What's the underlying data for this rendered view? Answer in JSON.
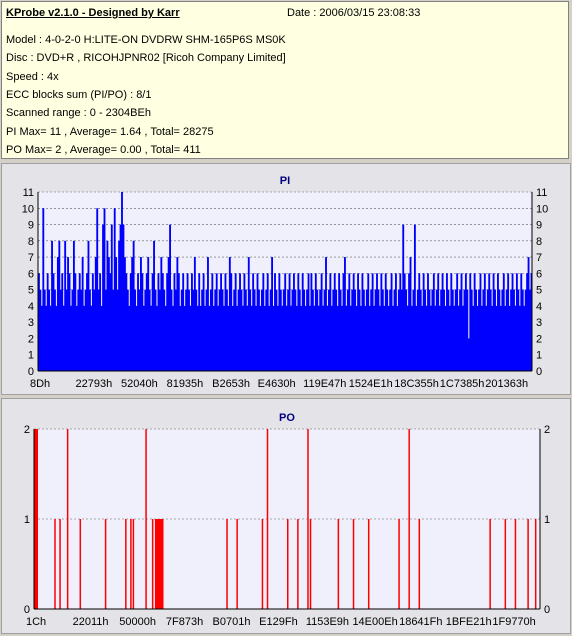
{
  "info": {
    "title": "KProbe v2.1.0 - Designed by Karr",
    "date": "Date : 2006/03/15 23:08:33",
    "lines": [
      "Model : 4-0-2-0 H:LITE-ON DVDRW SHM-165P6S MS0K",
      "Disc : DVD+R , RICOHJPNR02 [Ricoh Company Limited]",
      "Speed : 4x",
      "ECC blocks sum (PI/PO) : 8/1",
      "Scanned range : 0 - 2304BEh",
      "PI Max= 11 , Average= 1.64 , Total= 28275",
      "PO Max= 2 , Average= 0.00 , Total= 411"
    ]
  },
  "chart_data": [
    {
      "type": "bar",
      "title": "PI",
      "ylim": [
        0,
        11
      ],
      "yticks": [
        0,
        1,
        2,
        3,
        4,
        5,
        6,
        7,
        8,
        9,
        10,
        11
      ],
      "xtick_labels": [
        "8Dh",
        "22793h",
        "52040h",
        "81935h",
        "B2653h",
        "E4630h",
        "119E47h",
        "1524E1h",
        "18C355h",
        "1C7385h",
        "201363h"
      ],
      "color": "#0000ff",
      "grid": true,
      "series": [
        {
          "values": [
            6,
            5,
            4,
            10,
            5,
            4,
            6,
            5,
            4,
            8,
            6,
            5,
            4,
            7,
            8,
            5,
            6,
            4,
            8,
            5,
            7,
            6,
            4,
            5,
            8,
            6,
            4,
            5,
            6,
            5,
            7,
            4,
            5,
            6,
            8,
            5,
            4,
            6,
            5,
            7,
            10,
            5,
            6,
            4,
            9,
            10,
            5,
            8,
            7,
            6,
            9,
            5,
            10,
            7,
            5,
            8,
            9,
            11,
            9,
            7,
            6,
            5,
            4,
            6,
            7,
            8,
            5,
            4,
            6,
            5,
            7,
            6,
            4,
            5,
            6,
            7,
            5,
            4,
            6,
            8,
            5,
            4,
            6,
            5,
            7,
            6,
            5,
            4,
            6,
            7,
            9,
            5,
            4,
            6,
            5,
            7,
            6,
            4,
            5,
            6,
            4,
            5,
            6,
            5,
            4,
            6,
            5,
            7,
            5,
            4,
            6,
            4,
            5,
            6,
            4,
            5,
            7,
            4,
            5,
            6,
            4,
            5,
            6,
            4,
            5,
            6,
            5,
            4,
            6,
            5,
            4,
            7,
            6,
            4,
            5,
            6,
            4,
            5,
            6,
            5,
            4,
            6,
            5,
            4,
            7,
            5,
            4,
            6,
            5,
            4,
            6,
            5,
            4,
            5,
            6,
            4,
            5,
            6,
            4,
            5,
            7,
            4,
            6,
            5,
            4,
            6,
            5,
            4,
            5,
            6,
            4,
            5,
            6,
            4,
            5,
            6,
            5,
            4,
            6,
            5,
            4,
            6,
            5,
            4,
            5,
            6,
            4,
            6,
            5,
            4,
            6,
            5,
            4,
            5,
            6,
            4,
            5,
            7,
            4,
            5,
            6,
            4,
            5,
            6,
            5,
            4,
            6,
            5,
            4,
            6,
            7,
            4,
            5,
            6,
            4,
            5,
            6,
            5,
            4,
            6,
            5,
            4,
            6,
            5,
            4,
            5,
            6,
            4,
            5,
            6,
            4,
            5,
            6,
            5,
            4,
            6,
            5,
            4,
            6,
            5,
            4,
            5,
            6,
            4,
            5,
            6,
            4,
            5,
            6,
            5,
            9,
            6,
            5,
            4,
            6,
            7,
            4,
            5,
            9,
            4,
            5,
            6,
            5,
            4,
            6,
            5,
            4,
            6,
            5,
            4,
            5,
            6,
            4,
            5,
            6,
            4,
            5,
            6,
            5,
            4,
            6,
            5,
            4,
            6,
            5,
            4,
            5,
            6,
            4,
            5,
            6,
            4,
            5,
            6,
            5,
            2,
            6,
            5,
            4,
            6,
            5,
            4,
            5,
            6,
            4,
            5,
            6,
            4,
            5,
            6,
            5,
            4,
            6,
            5,
            4,
            6,
            5,
            4,
            5,
            6,
            4,
            5,
            6,
            4,
            5,
            6,
            5,
            4,
            6,
            5,
            4,
            6,
            5,
            4,
            5,
            6,
            7,
            5,
            6
          ]
        }
      ]
    },
    {
      "type": "bar",
      "title": "PO",
      "ylim": [
        0,
        2
      ],
      "yticks": [
        0,
        1,
        2
      ],
      "xtick_labels": [
        "1Ch",
        "22011h",
        "50000h",
        "7F873h",
        "B0701h",
        "E129Fh",
        "1153E9h",
        "14E00Eh",
        "18641Fh",
        "1BFE21h",
        "1F9770h"
      ],
      "color": "#ff0000",
      "grid": true,
      "series": [
        {
          "x": [
            0.001,
            0.003,
            0.005,
            0.04,
            0.05,
            0.065,
            0.09,
            0.14,
            0.18,
            0.19,
            0.195,
            0.22,
            0.233,
            0.239,
            0.24,
            0.242,
            0.244,
            0.245,
            0.247,
            0.248,
            0.25,
            0.252,
            0.253,
            0.38,
            0.4,
            0.45,
            0.46,
            0.5,
            0.52,
            0.54,
            0.545,
            0.6,
            0.63,
            0.66,
            0.72,
            0.74,
            0.76,
            0.9,
            0.93,
            0.95,
            0.975,
            0.99
          ],
          "values": [
            2,
            2,
            2,
            1,
            1,
            2,
            1,
            1,
            1,
            1,
            1,
            2,
            1,
            1,
            1,
            1,
            1,
            1,
            1,
            1,
            1,
            1,
            1,
            1,
            1,
            1,
            2,
            1,
            1,
            2,
            1,
            1,
            1,
            1,
            1,
            2,
            1,
            1,
            1,
            1,
            1,
            1
          ]
        }
      ]
    }
  ]
}
